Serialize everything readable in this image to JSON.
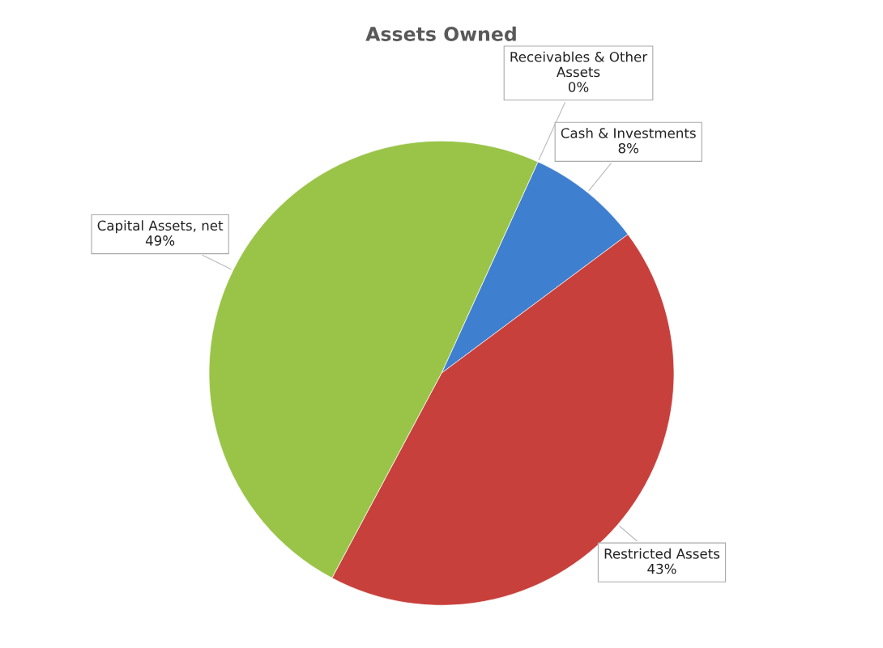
{
  "chart_data": {
    "type": "pie",
    "title": "Assets Owned",
    "categories": [
      "Receivables & Other Assets",
      "Cash & Investments",
      "Restricted Assets",
      "Capital Assets, net"
    ],
    "values": [
      0,
      8,
      43,
      49
    ],
    "value_labels": [
      "0%",
      "8%",
      "43%",
      "49%"
    ],
    "colors": [
      "#7b4fa0",
      "#3f7fd0",
      "#c8403c",
      "#99c448"
    ],
    "legend": false
  }
}
